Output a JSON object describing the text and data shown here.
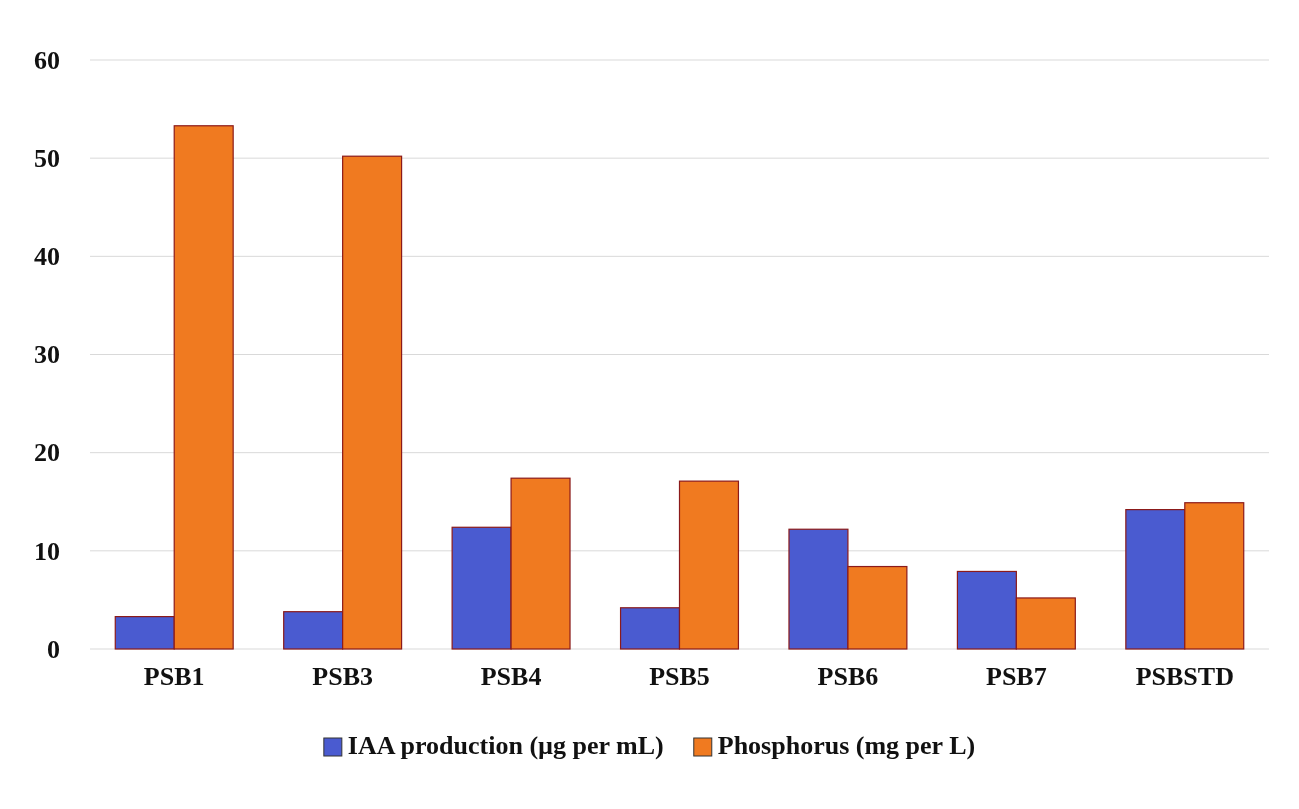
{
  "chart_data": {
    "type": "bar",
    "categories": [
      "PSB1",
      "PSB3",
      "PSB4",
      "PSB5",
      "PSB6",
      "PSB7",
      "PSBSTD"
    ],
    "series": [
      {
        "name": "IAA production (µg per mL)",
        "color": "#4a5bd0",
        "values": [
          3.3,
          3.8,
          12.4,
          4.2,
          12.2,
          7.9,
          14.2
        ]
      },
      {
        "name": "Phosphorus (mg per L)",
        "color": "#f07a20",
        "values": [
          53.3,
          50.2,
          17.4,
          17.1,
          8.4,
          5.2,
          14.9
        ]
      }
    ],
    "ylim": [
      0,
      60
    ],
    "yticks": [
      0,
      10,
      20,
      30,
      40,
      50,
      60
    ],
    "grid": "y",
    "legend": "bottom"
  }
}
